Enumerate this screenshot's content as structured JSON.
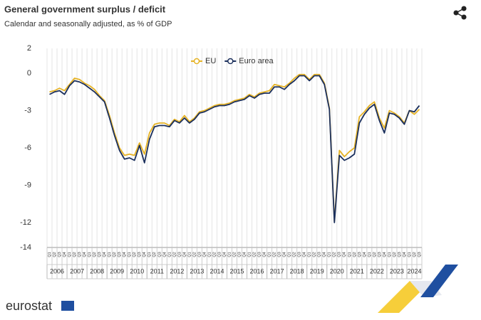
{
  "chart_data": {
    "type": "line",
    "title": "General government surplus / deficit",
    "subtitle": "Calendar and seasonally adjusted, as % of GDP",
    "brand": "eurostat",
    "categories": [
      "Q1",
      "Q2",
      "Q3",
      "Q4",
      "Q1",
      "Q2",
      "Q3",
      "Q4",
      "Q1",
      "Q2",
      "Q3",
      "Q4",
      "Q1",
      "Q2",
      "Q3",
      "Q4",
      "Q1",
      "Q2",
      "Q3",
      "Q4",
      "Q1",
      "Q2",
      "Q3",
      "Q4",
      "Q1",
      "Q2",
      "Q3",
      "Q4",
      "Q1",
      "Q2",
      "Q3",
      "Q4",
      "Q1",
      "Q2",
      "Q3",
      "Q4",
      "Q1",
      "Q2",
      "Q3",
      "Q4",
      "Q1",
      "Q2",
      "Q3",
      "Q4",
      "Q1",
      "Q2",
      "Q3",
      "Q4",
      "Q1",
      "Q2",
      "Q3",
      "Q4",
      "Q1",
      "Q2",
      "Q3",
      "Q4",
      "Q1",
      "Q2",
      "Q3",
      "Q4",
      "Q1",
      "Q2",
      "Q3",
      "Q4",
      "Q1",
      "Q2",
      "Q3",
      "Q4",
      "Q1",
      "Q2",
      "Q3",
      "Q4",
      "Q1",
      "Q2",
      "Q3"
    ],
    "years": [
      "2006",
      "2007",
      "2008",
      "2009",
      "2010",
      "2011",
      "2012",
      "2013",
      "2014",
      "2015",
      "2016",
      "2017",
      "2018",
      "2019",
      "2020",
      "2021",
      "2022",
      "2023",
      "2024"
    ],
    "series": [
      {
        "name": "EU",
        "color": "#e6b325",
        "values": [
          -1.5,
          -1.4,
          -1.2,
          -1.4,
          -0.9,
          -0.4,
          -0.5,
          -0.8,
          -1.0,
          -1.3,
          -1.8,
          -2.2,
          -3.4,
          -4.8,
          -6.0,
          -6.6,
          -6.5,
          -6.6,
          -5.6,
          -6.5,
          -4.8,
          -4.1,
          -4.0,
          -4.0,
          -4.2,
          -3.7,
          -3.9,
          -3.4,
          -3.9,
          -3.6,
          -3.1,
          -3.0,
          -2.8,
          -2.6,
          -2.5,
          -2.5,
          -2.4,
          -2.2,
          -2.1,
          -2.0,
          -1.7,
          -1.9,
          -1.6,
          -1.5,
          -1.4,
          -0.9,
          -1.0,
          -1.1,
          -0.8,
          -0.4,
          -0.1,
          -0.1,
          -0.5,
          -0.1,
          -0.1,
          -0.8,
          -2.8,
          -11.9,
          -6.2,
          -6.7,
          -6.3,
          -6.0,
          -3.5,
          -3.1,
          -2.6,
          -2.3,
          -3.6,
          -4.4,
          -3.0,
          -3.2,
          -3.5,
          -4.0,
          -3.0,
          -3.3,
          -2.9
        ]
      },
      {
        "name": "Euro area",
        "color": "#1b2f5c",
        "values": [
          -1.7,
          -1.5,
          -1.4,
          -1.7,
          -1.0,
          -0.6,
          -0.7,
          -0.9,
          -1.2,
          -1.5,
          -1.9,
          -2.3,
          -3.6,
          -5.0,
          -6.2,
          -6.9,
          -6.8,
          -7.0,
          -5.8,
          -7.2,
          -5.3,
          -4.3,
          -4.2,
          -4.2,
          -4.3,
          -3.8,
          -4.0,
          -3.6,
          -4.0,
          -3.7,
          -3.2,
          -3.1,
          -2.9,
          -2.7,
          -2.6,
          -2.6,
          -2.5,
          -2.3,
          -2.2,
          -2.1,
          -1.8,
          -2.0,
          -1.7,
          -1.6,
          -1.6,
          -1.1,
          -1.1,
          -1.3,
          -0.9,
          -0.6,
          -0.2,
          -0.2,
          -0.6,
          -0.2,
          -0.2,
          -0.9,
          -2.9,
          -12.0,
          -6.6,
          -7.0,
          -6.8,
          -6.5,
          -4.0,
          -3.3,
          -2.8,
          -2.5,
          -3.8,
          -4.8,
          -3.2,
          -3.3,
          -3.6,
          -4.1,
          -3.0,
          -3.1,
          -2.6
        ]
      }
    ],
    "ylim": [
      -14,
      2
    ],
    "yticks": [
      2,
      0,
      -3,
      -6,
      -9,
      -12,
      -14
    ],
    "grid": true
  }
}
